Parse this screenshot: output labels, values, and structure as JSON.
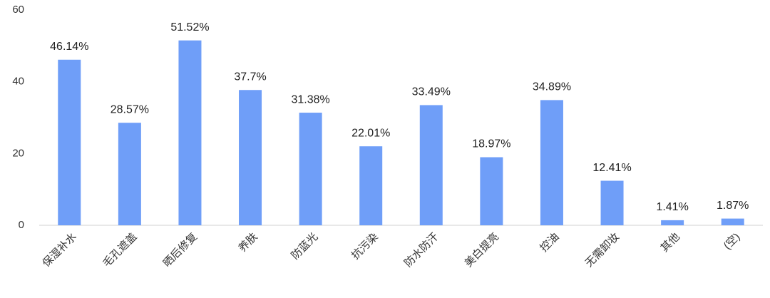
{
  "chart_data": {
    "type": "bar",
    "categories": [
      "保湿补水",
      "毛孔遮盖",
      "晒后修复",
      "养肤",
      "防蓝光",
      "抗污染",
      "防水防汗",
      "美白提亮",
      "控油",
      "无需卸妆",
      "其他",
      "(空)"
    ],
    "values": [
      46.14,
      28.57,
      51.52,
      37.7,
      31.38,
      22.01,
      33.49,
      18.97,
      34.89,
      12.41,
      1.41,
      1.87
    ],
    "value_labels": [
      "46.14%",
      "28.57%",
      "51.52%",
      "37.7%",
      "31.38%",
      "22.01%",
      "33.49%",
      "18.97%",
      "34.89%",
      "12.41%",
      "1.41%",
      "1.87%"
    ],
    "color": "#6f9ef8",
    "ylim": [
      0,
      60
    ],
    "yticks": [
      0,
      20,
      40,
      60
    ],
    "grid": false
  }
}
